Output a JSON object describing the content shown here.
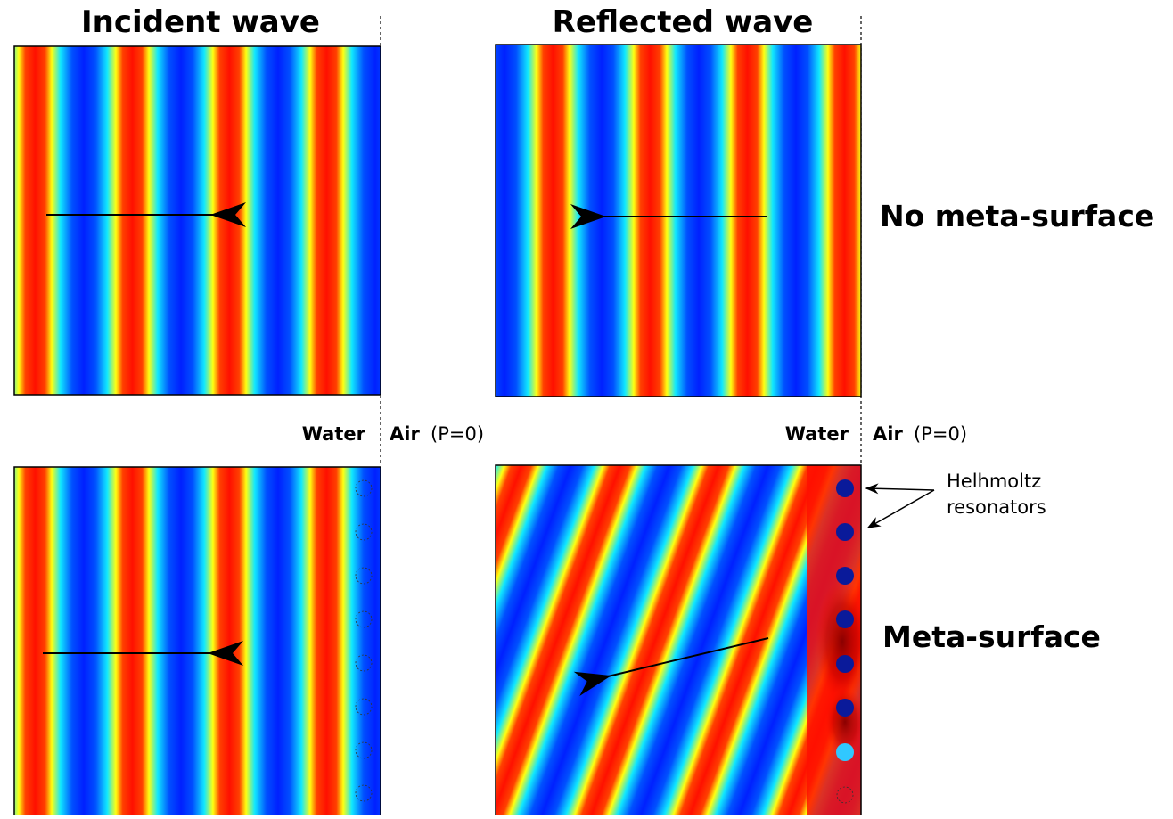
{
  "titles": {
    "incident": "Incident wave",
    "reflected": "Reflected wave"
  },
  "rows": {
    "no_meta": "No meta-surface",
    "meta": "Meta-surface"
  },
  "media": [
    {
      "water": "Water",
      "air": "Air",
      "condition": "(P=0)"
    },
    {
      "water": "Water",
      "air": "Air",
      "condition": "(P=0)"
    }
  ],
  "annotation": {
    "lines": [
      "Helhmoltz",
      "resonators"
    ]
  }
}
